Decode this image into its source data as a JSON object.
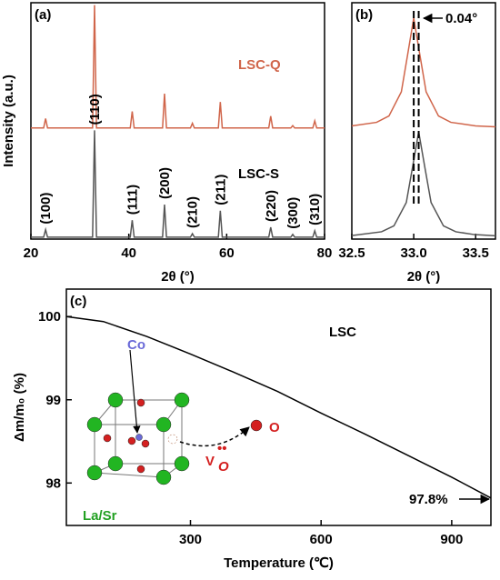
{
  "chart_data": [
    {
      "type": "line",
      "panel": "(a)",
      "xlabel": "2θ (°)",
      "ylabel": "Intensity (a.u.)",
      "xlim": [
        20,
        80
      ],
      "xticks": [
        20,
        40,
        60,
        80
      ],
      "ylim": [
        0,
        100
      ],
      "x": [
        20,
        22.6,
        23,
        23.4,
        32.6,
        33,
        33.4,
        40.3,
        40.7,
        41.1,
        46.9,
        47.3,
        47.7,
        52.6,
        53,
        53.4,
        58.3,
        58.7,
        59.1,
        68.6,
        69,
        69.4,
        73.1,
        73.5,
        73.9,
        77.6,
        78,
        78.4,
        80
      ],
      "series": [
        {
          "name": "LSC-Q",
          "color": "#d0654a",
          "values": [
            47,
            47,
            51,
            47,
            47,
            99,
            47,
            47,
            54,
            47,
            47,
            61.5,
            47,
            47,
            49,
            47,
            47,
            58,
            47,
            47,
            52,
            47,
            47,
            48,
            47,
            47,
            50,
            47,
            47
          ]
        },
        {
          "name": "LSC-S",
          "color": "#555555",
          "values": [
            0.8,
            0.8,
            4,
            0.8,
            0.8,
            46,
            0.8,
            0.8,
            8,
            0.8,
            0.8,
            14.6,
            0.8,
            0.8,
            2.3,
            0.8,
            0.8,
            12,
            0.8,
            0.8,
            5,
            0.8,
            0.8,
            2,
            0.8,
            0.8,
            3.5,
            0.8,
            0.8
          ]
        }
      ],
      "peak_labels": [
        "(100)",
        "(110)",
        "(111)",
        "(200)",
        "(210)",
        "(211)",
        "(220)",
        "(300)",
        "(310)"
      ]
    },
    {
      "type": "line",
      "panel": "(b)",
      "xlabel": "2θ (°)",
      "xlim": [
        32.5,
        33.66
      ],
      "xticks": [
        32.5,
        {
          "value": 33,
          "label": "33.0"
        },
        33.5
      ],
      "ylim": [
        0,
        100
      ],
      "series": [
        {
          "color": "#d0654a",
          "x": [
            32.5,
            32.7,
            32.8,
            32.9,
            32.95,
            33.0,
            33.05,
            33.1,
            33.2,
            33.3,
            33.5,
            33.66
          ],
          "values": [
            47.9,
            49.4,
            52.1,
            62.3,
            77.8,
            93.5,
            77.8,
            62.3,
            52.1,
            49.4,
            47.9,
            47.5
          ]
        },
        {
          "color": "#555555",
          "x": [
            32.5,
            32.74,
            32.84,
            32.94,
            32.99,
            33.04,
            33.09,
            33.14,
            33.24,
            33.34,
            33.49,
            33.66
          ],
          "values": [
            1.5,
            3.1,
            5.6,
            15.5,
            30.3,
            45.4,
            30.3,
            15.5,
            5.6,
            3.1,
            1.9,
            1.4
          ]
        }
      ],
      "annotation": "0.04°"
    },
    {
      "type": "line",
      "panel": "(c)",
      "xlabel": "Temperature (℃)",
      "ylabel": "Δm/m₀ (%)",
      "xlim": [
        15,
        990
      ],
      "xticks": [
        300,
        600,
        900
      ],
      "ylim": [
        97.49,
        100.33
      ],
      "yticks": [
        98,
        99,
        100
      ],
      "x": [
        15,
        100,
        200,
        300,
        400,
        500,
        600,
        700,
        800,
        900,
        990
      ],
      "series": [
        {
          "color": "#000000",
          "values": [
            100,
            99.94,
            99.76,
            99.55,
            99.33,
            99.1,
            98.84,
            98.59,
            98.33,
            98.07,
            97.82
          ]
        }
      ],
      "annotations": [
        "LSC",
        "97.8%"
      ]
    }
  ],
  "inset": {
    "co": "Co",
    "o": "O",
    "lasr": "La/Sr",
    "vacancy": "V",
    "vacancy_sub": "O",
    "vacancy_sup": "••"
  }
}
